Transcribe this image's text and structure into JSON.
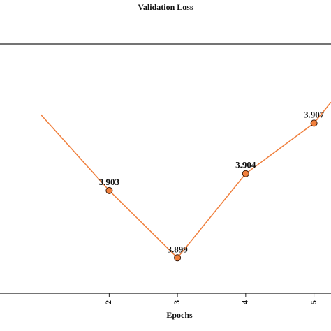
{
  "chart_data": {
    "type": "line",
    "title": "Validation Loss",
    "xlabel": "Epochs",
    "ylabel": "",
    "x": [
      1,
      2,
      3,
      4,
      5
    ],
    "xticks": [
      "2",
      "3",
      "4",
      "5"
    ],
    "series": [
      {
        "values": [
          3.9075,
          3.903,
          3.899,
          3.904,
          3.907
        ],
        "labels": [
          "",
          "3.903",
          "3.899",
          "3.904",
          "3.907"
        ],
        "color": "#F07F3C",
        "marker_edge": "#3a1a0a"
      }
    ],
    "xlim": [
      0.4,
      5.25
    ],
    "ylim": [
      3.8969,
      3.9117
    ],
    "grid": false,
    "legend": false
  }
}
